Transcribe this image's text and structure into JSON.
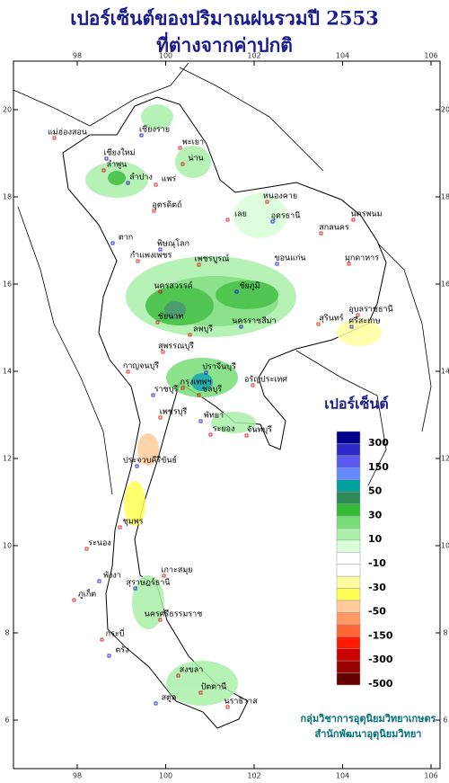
{
  "header": {
    "title": "เปอร์เซ็นต์ของปริมาณฝนรวมปี 2553",
    "subtitle": "ที่ต่างจากค่าปกติ"
  },
  "map": {
    "lon_ticks": [
      98,
      100,
      102,
      104,
      106
    ],
    "lat_ticks": [
      6,
      8,
      10,
      12,
      14,
      16,
      18,
      20
    ],
    "provinces": [
      "เชียงราย",
      "แม่ฮ่องสอน",
      "พะเยา",
      "เชียงใหม่",
      "น่าน",
      "ลำพูน",
      "ลำปาง",
      "แพร่",
      "อุตรดิตถ์",
      "ตาก",
      "หนองคาย",
      "เลย",
      "อุดรธานี",
      "สกลนคร",
      "นครพนม",
      "พิษณุโลก",
      "กำแพงเพชร",
      "เพชรบูรณ์",
      "ขอนแก่น",
      "มุกดาหาร",
      "นครสวรรค์",
      "ชัยภูมิ",
      "ชัยนาท",
      "ลพบุรี",
      "นครราชสีมา",
      "สุรินทร์",
      "อุบลราชธานี",
      "ศรีสะเกษ",
      "สุพรรณบุรี",
      "กาญจนบุรี",
      "ปราจีนบุรี",
      "อรัญประเทศ",
      "กรุงเทพฯ",
      "ราชบุรี",
      "ชลบุรี",
      "เพชรบุรี",
      "พัทยา",
      "ระยอง",
      "จันทบุรี",
      "ประจวบคีรีขันธ์",
      "ชุมพร",
      "ระนอง",
      "สุราษฎร์ธานี",
      "เกาะสมุย",
      "ภูเก็ต",
      "พังงา",
      "นครศรีธรรมราช",
      "กระบี่",
      "ตรัง",
      "สงขลา",
      "ปัตตานี",
      "สตูล",
      "นราธิวาส"
    ]
  },
  "legend": {
    "title": "เปอร์เซ็นต์",
    "colors": [
      "#00008b",
      "#2b2bc8",
      "#5a5af0",
      "#6688ff",
      "#00a0a0",
      "#2e8b57",
      "#33bb33",
      "#77dd77",
      "#aaf0aa",
      "#d8ffd8",
      "#ffffff",
      "#ffffff",
      "#ffffa0",
      "#ffff55",
      "#ffcc99",
      "#ff9966",
      "#ff6633",
      "#ff1a00",
      "#cc0000",
      "#990000",
      "#660000"
    ],
    "ticks": [
      300,
      150,
      50,
      30,
      10,
      -10,
      -30,
      -50,
      -150,
      -300,
      -500
    ]
  },
  "footer": {
    "line1": "กลุ่มวิชาการอุตุนิยมวิทยาเกษตร",
    "line2": "สำนักพัฒนาอุตุนิยมวิทยา"
  }
}
